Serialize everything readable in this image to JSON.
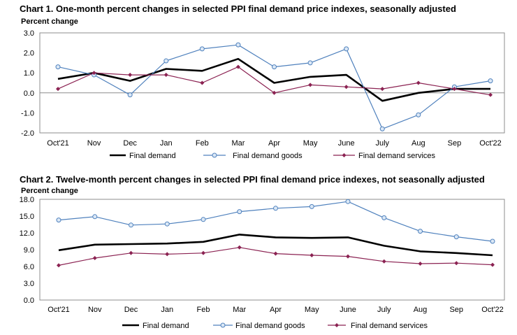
{
  "chart_data": [
    {
      "type": "line",
      "title": "Chart 1. One-month percent changes in selected PPI final demand price indexes, seasonally adjusted",
      "ylabel": "Percent change",
      "xlabel": "",
      "categories": [
        "Oct'21",
        "Nov",
        "Dec",
        "Jan",
        "Feb",
        "Mar",
        "Apr",
        "May",
        "June",
        "July",
        "Aug",
        "Sep",
        "Oct'22"
      ],
      "ylim": [
        -2.0,
        3.0
      ],
      "yticks": [
        "3.0",
        "2.0",
        "1.0",
        "0.0",
        "-1.0",
        "-2.0"
      ],
      "ytick_values": [
        3,
        2,
        1,
        0,
        -1,
        -2
      ],
      "series": [
        {
          "name": "Final demand",
          "color": "#000000",
          "marker": "none",
          "values": [
            0.7,
            1.0,
            0.6,
            1.2,
            1.1,
            1.7,
            0.5,
            0.8,
            0.9,
            -0.4,
            0.0,
            0.2,
            0.2
          ]
        },
        {
          "name": "Final demand goods",
          "color": "#4f81bd",
          "marker": "circle",
          "values": [
            1.3,
            0.9,
            -0.1,
            1.6,
            2.2,
            2.4,
            1.3,
            1.5,
            2.2,
            -1.8,
            -1.1,
            0.3,
            0.6
          ]
        },
        {
          "name": "Final demand services",
          "color": "#8b2252",
          "marker": "diamond",
          "values": [
            0.2,
            1.0,
            0.9,
            0.9,
            0.5,
            1.3,
            0.0,
            0.4,
            0.3,
            0.2,
            0.5,
            0.2,
            -0.1
          ]
        }
      ],
      "legend": [
        "Final demand",
        "Final demand goods",
        "Final demand services"
      ],
      "legend_position": "bottom",
      "grid": false
    },
    {
      "type": "line",
      "title": "Chart 2. Twelve-month percent changes in selected PPI final demand price indexes, not seasonally adjusted",
      "ylabel": "Percent change",
      "xlabel": "",
      "categories": [
        "Oct'21",
        "Nov",
        "Dec",
        "Jan",
        "Feb",
        "Mar",
        "Apr",
        "May",
        "June",
        "July",
        "Aug",
        "Sep",
        "Oct'22"
      ],
      "ylim": [
        0.0,
        18.0
      ],
      "yticks": [
        "18.0",
        "15.0",
        "12.0",
        "9.0",
        "6.0",
        "3.0",
        "0.0"
      ],
      "ytick_values": [
        18,
        15,
        12,
        9,
        6,
        3,
        0
      ],
      "series": [
        {
          "name": "Final demand",
          "color": "#000000",
          "marker": "none",
          "values": [
            8.9,
            9.9,
            10.0,
            10.1,
            10.4,
            11.7,
            11.2,
            11.1,
            11.2,
            9.7,
            8.7,
            8.4,
            8.0
          ]
        },
        {
          "name": "Final demand goods",
          "color": "#4f81bd",
          "marker": "circle",
          "values": [
            14.3,
            14.9,
            13.4,
            13.6,
            14.4,
            15.8,
            16.4,
            16.7,
            17.6,
            14.7,
            12.3,
            11.3,
            10.5
          ]
        },
        {
          "name": "Final demand services",
          "color": "#8b2252",
          "marker": "diamond",
          "values": [
            6.2,
            7.5,
            8.4,
            8.2,
            8.4,
            9.4,
            8.3,
            8.0,
            7.8,
            6.9,
            6.5,
            6.6,
            6.3
          ]
        }
      ],
      "legend": [
        "Final demand",
        "Final demand goods",
        "Final demand services"
      ],
      "legend_position": "bottom",
      "grid": false
    }
  ]
}
